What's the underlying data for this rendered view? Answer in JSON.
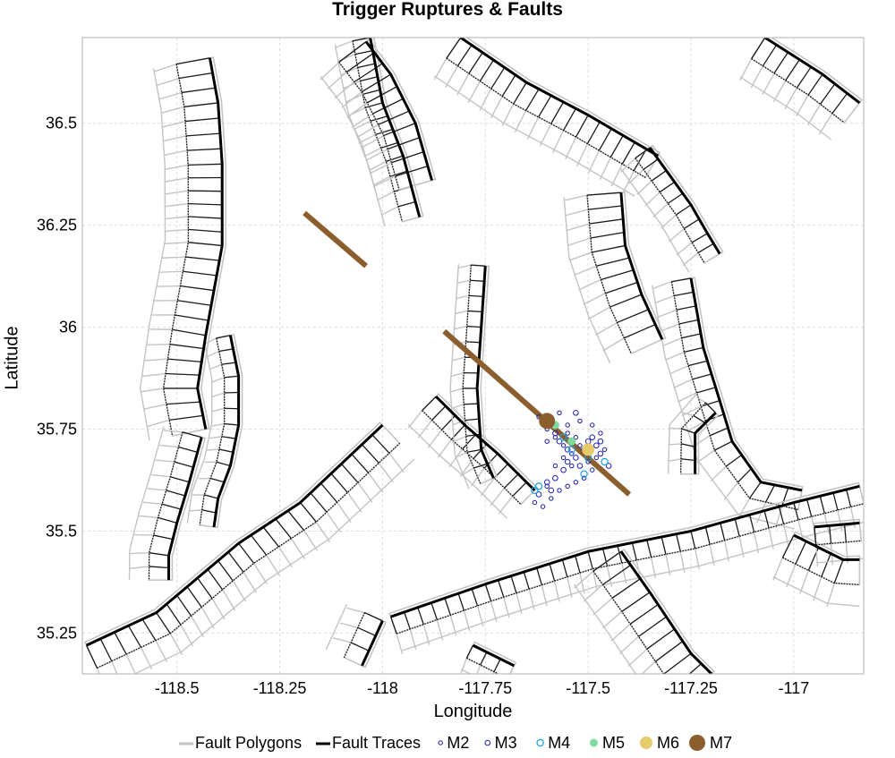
{
  "chart_data": {
    "type": "scatter",
    "title": "Trigger Ruptures & Faults",
    "xlabel": "Longitude",
    "ylabel": "Latitude",
    "xlim": [
      -118.73,
      -116.83
    ],
    "ylim": [
      35.15,
      36.71
    ],
    "xticks": [
      -118.5,
      -118.25,
      -118,
      -117.75,
      -117.5,
      -117.25,
      -117
    ],
    "xtick_labels": [
      "-118.5",
      "-118.25",
      "-118",
      "-117.75",
      "-117.5",
      "-117.25",
      "-117"
    ],
    "yticks": [
      35.25,
      35.5,
      35.75,
      36,
      36.25,
      36.5
    ],
    "ytick_labels": [
      "35.25",
      "35.5",
      "35.75",
      "36",
      "36.25",
      "36.5"
    ],
    "grid": true,
    "legend_position": "bottom",
    "legend": [
      {
        "label": "Fault Polygons",
        "kind": "line",
        "color": "#c4c4c4"
      },
      {
        "label": "Fault Traces",
        "kind": "line",
        "color": "#000000"
      },
      {
        "label": "M2",
        "kind": "circle",
        "color": "#1a1aa0"
      },
      {
        "label": "M3",
        "kind": "circle",
        "color": "#2222b8"
      },
      {
        "label": "M4",
        "kind": "circle",
        "color": "#1aa3e0"
      },
      {
        "label": "M5",
        "kind": "circle",
        "color": "#7ddc9e"
      },
      {
        "label": "M6",
        "kind": "circle",
        "color": "#e6cc6b"
      },
      {
        "label": "M7",
        "kind": "circle",
        "color": "#8b5e2e"
      }
    ],
    "fault_traces": [
      [
        [
          -118.42,
          36.66
        ],
        [
          -118.4,
          36.55
        ],
        [
          -118.39,
          36.4
        ],
        [
          -118.39,
          36.2
        ],
        [
          -118.43,
          35.98
        ],
        [
          -118.45,
          35.85
        ],
        [
          -118.43,
          35.75
        ]
      ],
      [
        [
          -118.44,
          35.73
        ],
        [
          -118.47,
          35.62
        ],
        [
          -118.5,
          35.52
        ],
        [
          -118.52,
          35.44
        ],
        [
          -118.52,
          35.38
        ]
      ],
      [
        [
          -118.37,
          35.98
        ],
        [
          -118.35,
          35.88
        ],
        [
          -118.35,
          35.76
        ],
        [
          -118.37,
          35.66
        ],
        [
          -118.4,
          35.58
        ],
        [
          -118.41,
          35.51
        ]
      ],
      [
        [
          -118.72,
          35.22
        ],
        [
          -118.55,
          35.3
        ],
        [
          -118.35,
          35.47
        ],
        [
          -118.2,
          35.57
        ],
        [
          -118.0,
          35.76
        ]
      ],
      [
        [
          -118.03,
          36.71
        ],
        [
          -118.0,
          36.55
        ],
        [
          -117.95,
          36.42
        ],
        [
          -117.91,
          36.27
        ]
      ],
      [
        [
          -118.04,
          36.7
        ],
        [
          -117.98,
          36.62
        ],
        [
          -117.92,
          36.5
        ],
        [
          -117.88,
          36.36
        ]
      ],
      [
        [
          -117.87,
          35.83
        ],
        [
          -117.8,
          35.76
        ],
        [
          -117.72,
          35.69
        ],
        [
          -117.67,
          35.64
        ],
        [
          -117.63,
          35.6
        ]
      ],
      [
        [
          -117.75,
          36.15
        ],
        [
          -117.76,
          36.0
        ],
        [
          -117.77,
          35.85
        ],
        [
          -117.76,
          35.7
        ],
        [
          -117.73,
          35.63
        ]
      ],
      [
        [
          -117.81,
          36.71
        ],
        [
          -117.65,
          36.6
        ],
        [
          -117.5,
          36.52
        ],
        [
          -117.33,
          36.42
        ]
      ],
      [
        [
          -117.35,
          36.44
        ],
        [
          -117.25,
          36.3
        ],
        [
          -117.21,
          36.23
        ],
        [
          -117.18,
          36.18
        ]
      ],
      [
        [
          -117.42,
          36.33
        ],
        [
          -117.41,
          36.2
        ],
        [
          -117.37,
          36.08
        ],
        [
          -117.32,
          35.97
        ]
      ],
      [
        [
          -117.25,
          36.12
        ],
        [
          -117.22,
          35.95
        ],
        [
          -117.18,
          35.82
        ],
        [
          -117.15,
          35.72
        ],
        [
          -117.08,
          35.62
        ],
        [
          -116.98,
          35.6
        ]
      ],
      [
        [
          -117.19,
          35.79
        ],
        [
          -117.24,
          35.74
        ],
        [
          -117.24,
          35.64
        ]
      ],
      [
        [
          -117.07,
          36.71
        ],
        [
          -116.93,
          36.62
        ],
        [
          -116.84,
          36.55
        ]
      ],
      [
        [
          -117.98,
          35.29
        ],
        [
          -117.75,
          35.37
        ],
        [
          -117.5,
          35.45
        ],
        [
          -117.25,
          35.5
        ],
        [
          -117.0,
          35.57
        ],
        [
          -116.84,
          35.61
        ]
      ],
      [
        [
          -117.42,
          35.45
        ],
        [
          -117.35,
          35.35
        ],
        [
          -117.25,
          35.2
        ],
        [
          -117.2,
          35.15
        ]
      ],
      [
        [
          -118.0,
          35.28
        ],
        [
          -118.05,
          35.17
        ]
      ],
      [
        [
          -117.78,
          35.22
        ],
        [
          -117.68,
          35.17
        ]
      ],
      [
        [
          -117.0,
          35.49
        ],
        [
          -116.88,
          35.43
        ],
        [
          -116.84,
          35.43
        ]
      ],
      [
        [
          -116.95,
          35.51
        ],
        [
          -116.84,
          35.52
        ]
      ]
    ],
    "trigger_ruptures": [
      {
        "points": [
          [
            -118.19,
            36.28
          ],
          [
            -118.04,
            36.15
          ]
        ]
      },
      {
        "points": [
          [
            -117.85,
            35.99
          ],
          [
            -117.4,
            35.59
          ]
        ]
      }
    ],
    "events": {
      "M7": [
        [
          -117.6,
          35.77
        ]
      ],
      "M6": [
        [
          -117.5,
          35.7
        ]
      ],
      "M5": [
        [
          -117.58,
          35.76
        ],
        [
          -117.54,
          35.72
        ]
      ],
      "M4": [
        [
          -117.56,
          35.73
        ],
        [
          -117.5,
          35.68
        ],
        [
          -117.46,
          35.67
        ],
        [
          -117.62,
          35.61
        ],
        [
          -117.63,
          35.6
        ],
        [
          -117.54,
          35.7
        ],
        [
          -117.51,
          35.64
        ]
      ],
      "M3": [
        [
          -117.61,
          35.77
        ],
        [
          -117.58,
          35.74
        ],
        [
          -117.57,
          35.72
        ],
        [
          -117.55,
          35.7
        ],
        [
          -117.53,
          35.68
        ],
        [
          -117.52,
          35.66
        ],
        [
          -117.5,
          35.72
        ],
        [
          -117.48,
          35.71
        ],
        [
          -117.47,
          35.69
        ],
        [
          -117.45,
          35.66
        ],
        [
          -117.56,
          35.65
        ],
        [
          -117.58,
          35.63
        ],
        [
          -117.6,
          35.62
        ],
        [
          -117.62,
          35.59
        ],
        [
          -117.59,
          35.6
        ],
        [
          -117.55,
          35.67
        ],
        [
          -117.53,
          35.79
        ],
        [
          -117.49,
          35.73
        ],
        [
          -117.47,
          35.72
        ],
        [
          -117.51,
          35.7
        ]
      ],
      "M2": [
        [
          -117.62,
          35.78
        ],
        [
          -117.6,
          35.75
        ],
        [
          -117.57,
          35.79
        ],
        [
          -117.55,
          35.74
        ],
        [
          -117.56,
          35.71
        ],
        [
          -117.54,
          35.69
        ],
        [
          -117.52,
          35.71
        ],
        [
          -117.5,
          35.69
        ],
        [
          -117.48,
          35.68
        ],
        [
          -117.46,
          35.7
        ],
        [
          -117.49,
          35.65
        ],
        [
          -117.51,
          35.63
        ],
        [
          -117.53,
          35.62
        ],
        [
          -117.55,
          35.61
        ],
        [
          -117.57,
          35.6
        ],
        [
          -117.59,
          35.58
        ],
        [
          -117.61,
          35.56
        ],
        [
          -117.63,
          35.57
        ],
        [
          -117.6,
          35.61
        ],
        [
          -117.58,
          35.66
        ],
        [
          -117.56,
          35.68
        ],
        [
          -117.54,
          35.66
        ],
        [
          -117.5,
          35.67
        ],
        [
          -117.47,
          35.74
        ],
        [
          -117.52,
          35.77
        ],
        [
          -117.58,
          35.73
        ],
        [
          -117.6,
          35.72
        ],
        [
          -117.53,
          35.73
        ],
        [
          -117.49,
          35.76
        ],
        [
          -117.55,
          35.76
        ]
      ]
    }
  }
}
